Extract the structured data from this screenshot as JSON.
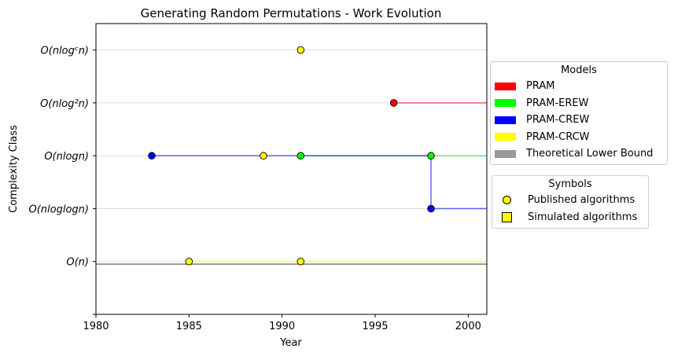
{
  "chart_data": {
    "type": "line",
    "title": "Generating Random Permutations - Work Evolution",
    "xlabel": "Year",
    "ylabel": "Complexity Class",
    "xlim": [
      1980,
      2001
    ],
    "ylim": [
      -1,
      4.5
    ],
    "x_ticks": [
      "1980",
      "1985",
      "1990",
      "1995",
      "2000"
    ],
    "y_categories": [
      {
        "level": 0,
        "label": "O(n)"
      },
      {
        "level": 1,
        "label": "O(nloglogn)"
      },
      {
        "level": 2,
        "label": "O(nlogn)"
      },
      {
        "level": 3,
        "label": "O(nlog²n)"
      },
      {
        "level": 4,
        "label": "O(nlogᶜn)"
      }
    ],
    "grid": "horizontal",
    "series": [
      {
        "name": "PRAM",
        "color": "#ff0000",
        "line": [
          [
            1996,
            3
          ],
          [
            2001,
            3
          ]
        ],
        "points": [
          {
            "x": 1996,
            "y": 3
          }
        ]
      },
      {
        "name": "PRAM-EREW",
        "color": "#00ff00",
        "line": [
          [
            1991,
            2
          ],
          [
            2001,
            2
          ]
        ],
        "points": [
          {
            "x": 1991,
            "y": 2
          },
          {
            "x": 1998,
            "y": 2
          }
        ]
      },
      {
        "name": "PRAM-CREW",
        "color": "#0000ff",
        "line": [
          [
            1983,
            2
          ],
          [
            1998,
            2
          ],
          [
            1998,
            1
          ],
          [
            2001,
            1
          ]
        ],
        "points": [
          {
            "x": 1983,
            "y": 2
          },
          {
            "x": 1998,
            "y": 1
          }
        ]
      },
      {
        "name": "PRAM-CRCW",
        "color": "#ffff00",
        "line": [
          [
            1985,
            0
          ],
          [
            2001,
            0
          ]
        ],
        "points": [
          {
            "x": 1991,
            "y": 4
          },
          {
            "x": 1989,
            "y": 2
          },
          {
            "x": 1985,
            "y": 0
          },
          {
            "x": 1991,
            "y": 0
          }
        ]
      },
      {
        "name": "Theoretical Lower Bound",
        "color": "#999999",
        "line": [
          [
            1980,
            -0.05
          ],
          [
            2001,
            -0.05
          ]
        ],
        "points": []
      }
    ],
    "legend_models": {
      "title": "Models",
      "entries": [
        {
          "label": "PRAM",
          "color": "#ff0000"
        },
        {
          "label": "PRAM-EREW",
          "color": "#00ff00"
        },
        {
          "label": "PRAM-CREW",
          "color": "#0000ff"
        },
        {
          "label": "PRAM-CRCW",
          "color": "#ffff00"
        },
        {
          "label": "Theoretical Lower Bound",
          "color": "#999999"
        }
      ],
      "placement": "right"
    },
    "legend_symbols": {
      "title": "Symbols",
      "entries": [
        {
          "label": "Published algorithms",
          "marker": "circle"
        },
        {
          "label": "Simulated algorithms",
          "marker": "square"
        }
      ],
      "placement": "right"
    }
  }
}
